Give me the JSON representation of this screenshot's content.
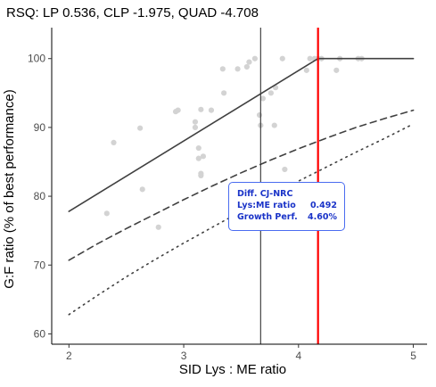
{
  "chart_data": {
    "type": "scatter",
    "title": "RSQ: LP 0.536, CLP -1.975, QUAD -4.708",
    "xlabel": "SID Lys : ME ratio",
    "ylabel": "G:F ratio (% of best performance)",
    "xlim": [
      1.85,
      5.12
    ],
    "ylim": [
      58.5,
      104.5
    ],
    "x_ticks": [
      "2",
      "3",
      "4",
      "5"
    ],
    "y_ticks": [
      "60",
      "70",
      "80",
      "90",
      "100"
    ],
    "grid": false,
    "points": [
      [
        2.33,
        77.5
      ],
      [
        2.39,
        87.8
      ],
      [
        2.62,
        89.9
      ],
      [
        2.64,
        81.0
      ],
      [
        2.78,
        75.5
      ],
      [
        2.93,
        92.3
      ],
      [
        2.95,
        92.5
      ],
      [
        3.1,
        90.8
      ],
      [
        3.1,
        90.0
      ],
      [
        3.13,
        87.0
      ],
      [
        3.13,
        85.5
      ],
      [
        3.15,
        83.3
      ],
      [
        3.15,
        83.0
      ],
      [
        3.17,
        85.8
      ],
      [
        3.15,
        92.6
      ],
      [
        3.24,
        92.5
      ],
      [
        3.34,
        98.5
      ],
      [
        3.35,
        95.0
      ],
      [
        3.47,
        98.5
      ],
      [
        3.55,
        98.8
      ],
      [
        3.57,
        99.5
      ],
      [
        3.62,
        100.0
      ],
      [
        3.66,
        91.8
      ],
      [
        3.67,
        90.3
      ],
      [
        3.69,
        94.2
      ],
      [
        3.76,
        95.0
      ],
      [
        3.79,
        90.3
      ],
      [
        3.8,
        95.8
      ],
      [
        3.86,
        100.0
      ],
      [
        3.88,
        83.9
      ],
      [
        4.07,
        98.3
      ],
      [
        4.1,
        100.0
      ],
      [
        4.14,
        100.0
      ],
      [
        4.17,
        100.0
      ],
      [
        4.2,
        100.0
      ],
      [
        4.33,
        98.3
      ],
      [
        4.36,
        100.0
      ],
      [
        4.52,
        100.0
      ],
      [
        4.55,
        100.0
      ]
    ],
    "series": [
      {
        "type": "linear-plateau",
        "style": "solid",
        "color": "#404040",
        "x": [
          2.0,
          4.17,
          5.0
        ],
        "y": [
          77.8,
          100.0,
          100.0
        ]
      },
      {
        "type": "curvilinear-plateau",
        "style": "dashed",
        "color": "#404040",
        "x": [
          2.0,
          2.25,
          2.5,
          2.75,
          3.0,
          3.25,
          3.5,
          3.75,
          4.0,
          4.25,
          4.5,
          4.75,
          5.0
        ],
        "y": [
          70.7,
          73.1,
          75.3,
          77.4,
          79.5,
          81.5,
          83.4,
          85.2,
          86.9,
          88.5,
          90.0,
          91.3,
          92.5
        ]
      },
      {
        "type": "quadratic",
        "style": "dotted",
        "color": "#404040",
        "x": [
          2.0,
          2.25,
          2.5,
          2.75,
          3.0,
          3.25,
          3.5,
          3.75,
          4.0,
          4.25,
          4.5,
          4.75,
          5.0
        ],
        "y": [
          62.8,
          65.6,
          68.3,
          70.8,
          73.2,
          75.5,
          77.8,
          80.0,
          82.2,
          84.3,
          86.4,
          88.4,
          90.5
        ]
      }
    ],
    "vlines": [
      {
        "x": 3.67,
        "color": "#333333"
      },
      {
        "x": 4.17,
        "color": "#ff0000"
      }
    ],
    "colors": {
      "points": "#d3d3d3",
      "fit": "#404040",
      "red_line": "#ff0000",
      "tooltip_border": "#4a6cf0",
      "tooltip_text": "#1a33c8"
    },
    "tooltip": {
      "title": "Diff. CJ-NRC",
      "rows": [
        {
          "label": "Lys:ME ratio",
          "value": "0.492"
        },
        {
          "label": "Growth Perf.",
          "value": "4.60%"
        }
      ]
    }
  }
}
